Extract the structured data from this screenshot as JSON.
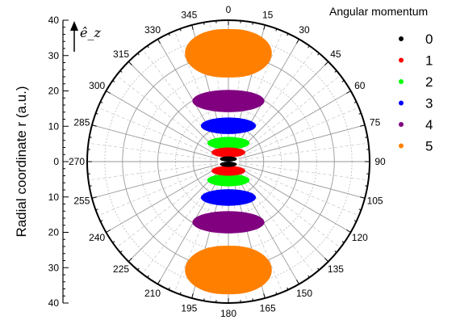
{
  "chart_data": {
    "type": "polar-scatter",
    "title": "",
    "ylabel": "Radial coordinate  r (a.u.)",
    "rlim": [
      0,
      40
    ],
    "radial_ticks_major": [
      0,
      10,
      20,
      30,
      40
    ],
    "radial_tick_labels": [
      "40",
      "30",
      "20",
      "10",
      "0",
      "10",
      "20",
      "30",
      "40"
    ],
    "angle_tick_labels": [
      "0",
      "15",
      "30",
      "45",
      "60",
      "75",
      "90",
      "105",
      "120",
      "135",
      "150",
      "165",
      "180",
      "195",
      "210",
      "225",
      "240",
      "255",
      "270",
      "285",
      "300",
      "315",
      "330",
      "345"
    ],
    "axis_annotation": "ê_z",
    "grid": true,
    "legend": {
      "title": "Angular momentum",
      "placement": "top-right",
      "entries": [
        "0",
        "1",
        "2",
        "3",
        "4",
        "5"
      ]
    },
    "series": [
      {
        "name": "0",
        "color": "#000000",
        "blobs": [
          {
            "r_min": 0,
            "r_max": 1.5,
            "half_width": 0.8
          },
          {
            "r_min": 0,
            "r_max": 1.5,
            "half_width": 0.8,
            "side": "bottom"
          }
        ]
      },
      {
        "name": "1",
        "color": "#ff0000",
        "blobs": [
          {
            "r_min": 1.2,
            "r_max": 4.0,
            "half_width": 1.6
          },
          {
            "r_min": 1.2,
            "r_max": 4.0,
            "half_width": 1.6,
            "side": "bottom"
          }
        ]
      },
      {
        "name": "2",
        "color": "#00ff00",
        "blobs": [
          {
            "r_min": 3.5,
            "r_max": 7.0,
            "half_width": 2.0
          },
          {
            "r_min": 3.5,
            "r_max": 7.0,
            "half_width": 2.0,
            "side": "bottom"
          }
        ]
      },
      {
        "name": "3",
        "color": "#0000ff",
        "blobs": [
          {
            "r_min": 7.8,
            "r_max": 12.5,
            "half_width": 2.6
          },
          {
            "r_min": 7.8,
            "r_max": 12.5,
            "half_width": 2.6,
            "side": "bottom"
          }
        ]
      },
      {
        "name": "4",
        "color": "#800080",
        "blobs": [
          {
            "r_min": 14.0,
            "r_max": 20.3,
            "half_width": 3.4
          },
          {
            "r_min": 14.0,
            "r_max": 20.3,
            "half_width": 3.4,
            "side": "bottom"
          }
        ]
      },
      {
        "name": "5",
        "color": "#ff8000",
        "blobs": [
          {
            "r_min": 23.8,
            "r_max": 37.5,
            "half_width": 4.1
          },
          {
            "r_min": 23.8,
            "r_max": 37.5,
            "half_width": 4.1,
            "side": "bottom"
          }
        ]
      }
    ]
  }
}
